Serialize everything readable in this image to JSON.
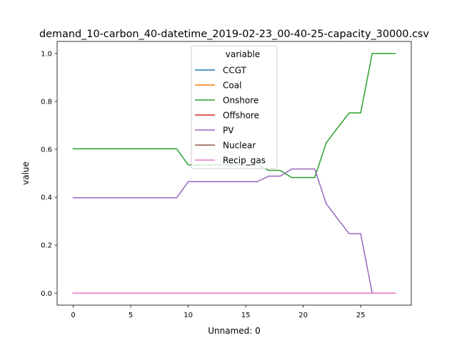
{
  "chart_data": {
    "type": "line",
    "title": "demand_10-carbon_40-datetime_2019-02-23_00-40-25-capacity_30000.csv",
    "xlabel": "Unnamed: 0",
    "ylabel": "value",
    "xlim": [
      -1.4,
      29.4
    ],
    "ylim": [
      -0.05,
      1.05
    ],
    "xticks": [
      0,
      5,
      10,
      15,
      20,
      25
    ],
    "xtick_labels": [
      "0",
      "5",
      "10",
      "15",
      "20",
      "25"
    ],
    "yticks": [
      0.0,
      0.2,
      0.4,
      0.6,
      0.8,
      1.0
    ],
    "ytick_labels": [
      "0.0",
      "0.2",
      "0.4",
      "0.6",
      "0.8",
      "1.0"
    ],
    "grid": false,
    "legend": {
      "title": "variable",
      "placement": "upper center"
    },
    "x": [
      0,
      1,
      2,
      3,
      4,
      5,
      6,
      7,
      8,
      9,
      10,
      11,
      12,
      13,
      14,
      15,
      16,
      17,
      18,
      19,
      20,
      21,
      22,
      23,
      24,
      25,
      26,
      27,
      28
    ],
    "series": [
      {
        "name": "CCGT",
        "color": "#1f77b4",
        "values": [
          0,
          0,
          0,
          0,
          0,
          0,
          0,
          0,
          0,
          0,
          0,
          0,
          0,
          0,
          0,
          0,
          0,
          0,
          0,
          0,
          0,
          0,
          0,
          0,
          0,
          0,
          0,
          0,
          0
        ]
      },
      {
        "name": "Coal",
        "color": "#ff7f0e",
        "values": [
          0,
          0,
          0,
          0,
          0,
          0,
          0,
          0,
          0,
          0,
          0,
          0,
          0,
          0,
          0,
          0,
          0,
          0,
          0,
          0,
          0,
          0,
          0,
          0,
          0,
          0,
          0,
          0,
          0
        ]
      },
      {
        "name": "Onshore",
        "color": "#2ca02c",
        "values": [
          0.602,
          0.602,
          0.602,
          0.602,
          0.602,
          0.602,
          0.602,
          0.602,
          0.602,
          0.602,
          0.535,
          0.535,
          0.535,
          0.535,
          0.535,
          0.535,
          0.535,
          0.512,
          0.512,
          0.482,
          0.482,
          0.482,
          0.627,
          0.69,
          0.752,
          0.752,
          1.0,
          1.0,
          1.0
        ]
      },
      {
        "name": "Offshore",
        "color": "#d62728",
        "values": [
          0,
          0,
          0,
          0,
          0,
          0,
          0,
          0,
          0,
          0,
          0,
          0,
          0,
          0,
          0,
          0,
          0,
          0,
          0,
          0,
          0,
          0,
          0,
          0,
          0,
          0,
          0,
          0,
          0
        ]
      },
      {
        "name": "PV",
        "color": "#9467bd",
        "values": [
          0.398,
          0.398,
          0.398,
          0.398,
          0.398,
          0.398,
          0.398,
          0.398,
          0.398,
          0.398,
          0.465,
          0.465,
          0.465,
          0.465,
          0.465,
          0.465,
          0.465,
          0.488,
          0.488,
          0.518,
          0.518,
          0.518,
          0.373,
          0.31,
          0.248,
          0.248,
          0.0,
          0.0,
          0.0
        ]
      },
      {
        "name": "Nuclear",
        "color": "#8c564b",
        "values": [
          0,
          0,
          0,
          0,
          0,
          0,
          0,
          0,
          0,
          0,
          0,
          0,
          0,
          0,
          0,
          0,
          0,
          0,
          0,
          0,
          0,
          0,
          0,
          0,
          0,
          0,
          0,
          0,
          0
        ]
      },
      {
        "name": "Recip_gas",
        "color": "#e377c2",
        "values": [
          0,
          0,
          0,
          0,
          0,
          0,
          0,
          0,
          0,
          0,
          0,
          0,
          0,
          0,
          0,
          0,
          0,
          0,
          0,
          0,
          0,
          0,
          0,
          0,
          0,
          0,
          0,
          0,
          0
        ]
      }
    ]
  }
}
